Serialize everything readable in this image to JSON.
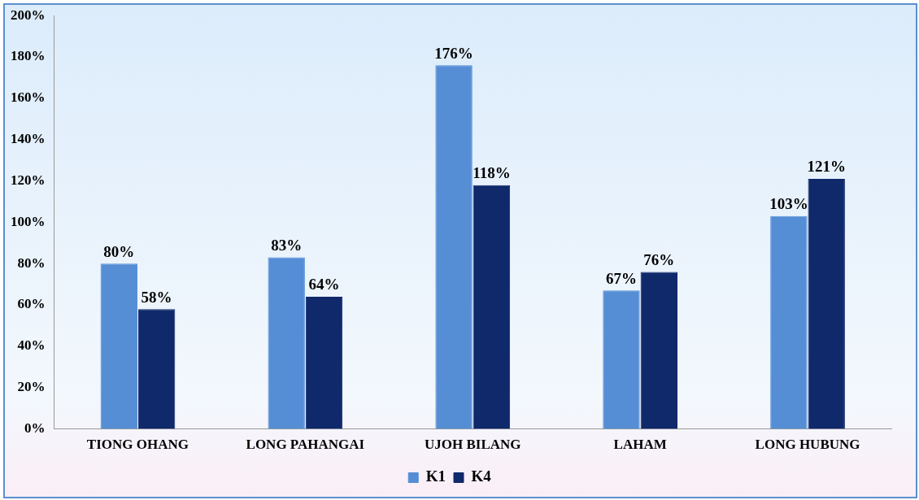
{
  "chart_data": {
    "type": "bar",
    "categories": [
      "TIONG OHANG",
      "LONG PAHANGAI",
      "UJOH BILANG",
      "LAHAM",
      "LONG HUBUNG"
    ],
    "series": [
      {
        "name": "K1",
        "color": "#558ed5",
        "values": [
          80,
          83,
          176,
          67,
          103
        ],
        "value_labels": [
          "80%",
          "83%",
          "176%",
          "67%",
          "103%"
        ]
      },
      {
        "name": "K4",
        "color": "#10296b",
        "values": [
          58,
          64,
          118,
          76,
          121
        ],
        "value_labels": [
          "58%",
          "64%",
          "118%",
          "76%",
          "121%"
        ]
      }
    ],
    "ylim": [
      0,
      200
    ],
    "yticks": [
      {
        "value": 0,
        "label": "0%"
      },
      {
        "value": 20,
        "label": "20%"
      },
      {
        "value": 40,
        "label": "40%"
      },
      {
        "value": 60,
        "label": "60%"
      },
      {
        "value": 80,
        "label": "80%"
      },
      {
        "value": 100,
        "label": "100%"
      },
      {
        "value": 120,
        "label": "120%"
      },
      {
        "value": 140,
        "label": "140%"
      },
      {
        "value": 160,
        "label": "160%"
      },
      {
        "value": 180,
        "label": "180%"
      },
      {
        "value": 200,
        "label": "200%"
      }
    ],
    "grid": false,
    "legend": "bottom"
  }
}
